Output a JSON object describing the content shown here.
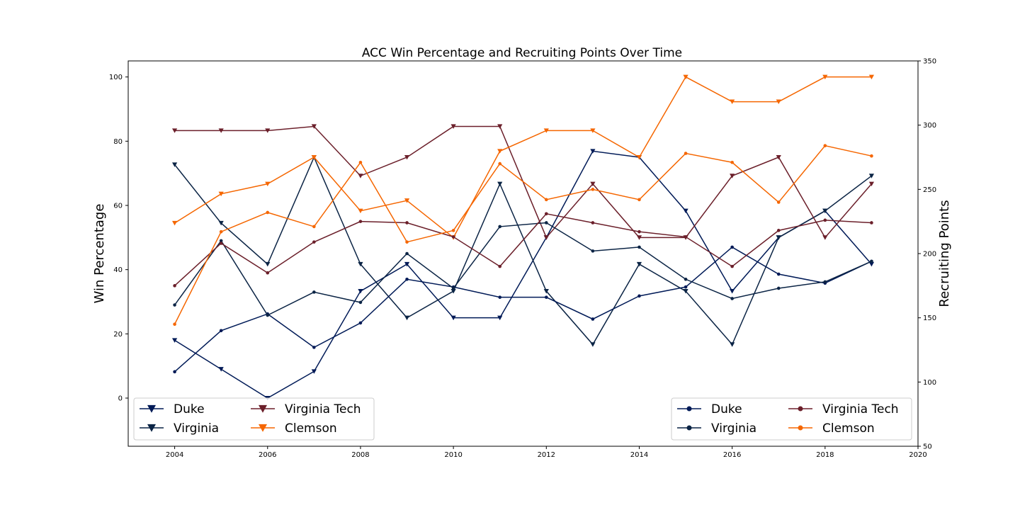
{
  "chart_data": {
    "type": "line",
    "title": "ACC Win Percentage and Recruiting Points Over Time",
    "x": [
      2004,
      2005,
      2006,
      2007,
      2008,
      2009,
      2010,
      2011,
      2012,
      2013,
      2014,
      2015,
      2016,
      2017,
      2018,
      2019
    ],
    "xlim": [
      2003,
      2020
    ],
    "xticks": [
      2004,
      2006,
      2008,
      2010,
      2012,
      2014,
      2016,
      2018,
      2020
    ],
    "left_axis": {
      "label": "Win Percentage",
      "ylim": [
        -15,
        105
      ],
      "ticks": [
        0,
        20,
        40,
        60,
        80,
        100
      ],
      "marker": "triangle-down",
      "series": [
        {
          "name": "Duke",
          "color": "#001a57",
          "values": [
            18,
            9,
            0,
            8.3,
            33.3,
            41.7,
            25,
            25,
            50,
            76.9,
            75,
            58.3,
            33.3,
            50,
            58.3,
            41.7
          ]
        },
        {
          "name": "Virginia",
          "color": "#0b2445",
          "values": [
            72.7,
            54.5,
            41.7,
            75,
            41.7,
            25,
            33.3,
            66.7,
            33.3,
            16.7,
            41.7,
            33.3,
            16.7,
            50,
            58.3,
            69.2
          ]
        },
        {
          "name": "Virginia Tech",
          "color": "#6b1f2a",
          "values": [
            83.3,
            83.3,
            83.3,
            84.6,
            69.2,
            75,
            84.6,
            84.6,
            50,
            66.7,
            50,
            50,
            69.2,
            75,
            50,
            66.7
          ]
        },
        {
          "name": "Clemson",
          "color": "#f56600",
          "values": [
            54.5,
            63.6,
            66.7,
            75,
            58.3,
            61.5,
            50,
            76.9,
            83.3,
            83.3,
            75,
            100,
            92.3,
            92.3,
            100,
            100
          ]
        }
      ],
      "legend_position": "lower-left"
    },
    "right_axis": {
      "label": "Recruiting Points",
      "ylim": [
        50,
        350
      ],
      "ticks": [
        50,
        100,
        150,
        200,
        250,
        300,
        350
      ],
      "marker": "circle",
      "series": [
        {
          "name": "Duke",
          "color": "#001a57",
          "values": [
            108,
            140,
            153,
            127,
            146,
            180,
            174,
            166,
            166,
            149,
            167,
            174,
            205,
            184,
            177,
            194
          ]
        },
        {
          "name": "Virginia",
          "color": "#0b2445",
          "values": [
            160,
            210,
            152,
            170,
            162,
            200,
            173,
            221,
            224,
            202,
            205,
            180,
            165,
            173,
            178,
            194
          ]
        },
        {
          "name": "Virginia Tech",
          "color": "#6b1f2a",
          "values": [
            175,
            208,
            185,
            209,
            225,
            224,
            213,
            190,
            231,
            224,
            217,
            213,
            190,
            218,
            226,
            224
          ]
        },
        {
          "name": "Clemson",
          "color": "#f56600",
          "values": [
            145,
            217,
            232,
            221,
            271,
            209,
            218,
            270,
            242,
            250,
            242,
            278,
            271,
            240,
            284,
            276
          ]
        }
      ],
      "legend_position": "lower-right"
    }
  }
}
